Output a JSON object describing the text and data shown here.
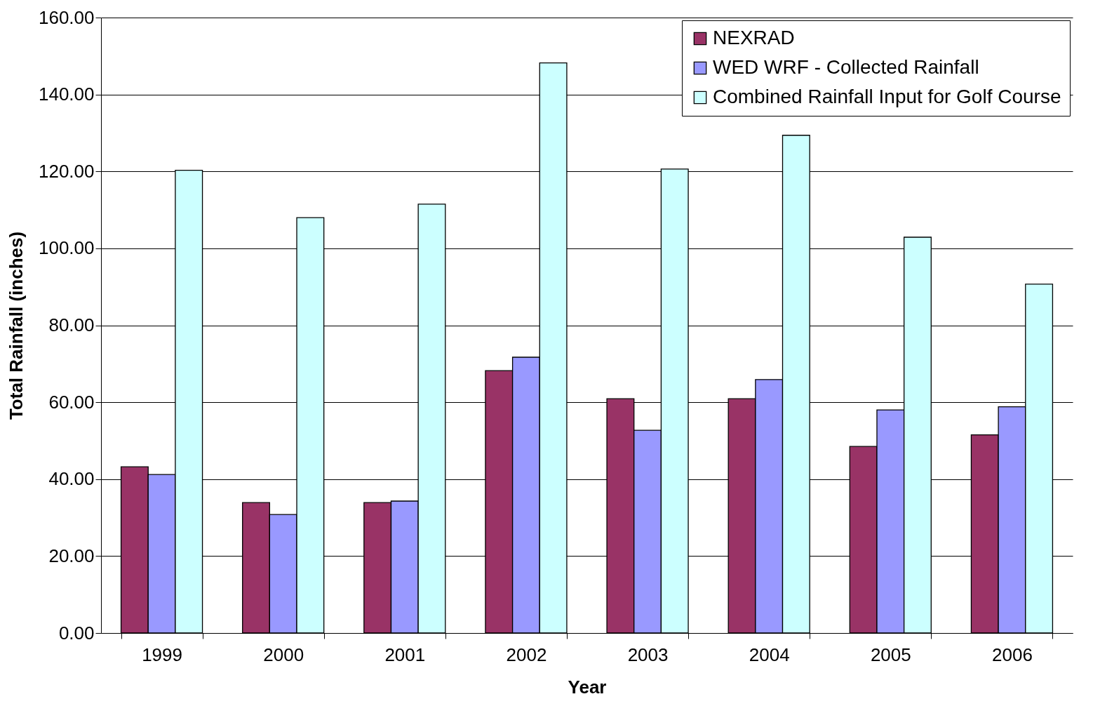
{
  "chart_data": {
    "type": "bar",
    "xlabel": "Year",
    "ylabel": "Total Rainfall (inches)",
    "categories": [
      "1999",
      "2000",
      "2001",
      "2002",
      "2003",
      "2004",
      "2005",
      "2006"
    ],
    "series": [
      {
        "name": "NEXRAD",
        "color": "#993366",
        "values": [
          43.2,
          33.9,
          33.9,
          68.2,
          60.9,
          60.9,
          48.5,
          51.5
        ]
      },
      {
        "name": "WED WRF - Collected Rainfall",
        "color": "#9999ff",
        "values": [
          41.2,
          30.8,
          34.3,
          71.7,
          52.7,
          65.9,
          58.0,
          58.8
        ]
      },
      {
        "name": "Combined Rainfall Input for Golf Course",
        "color": "#ccffff",
        "values": [
          120.3,
          108.0,
          111.5,
          148.2,
          120.6,
          129.4,
          102.9,
          90.7
        ]
      }
    ],
    "ylim": [
      0,
      160
    ],
    "yticks": [
      {
        "value": 0,
        "label": "0.00"
      },
      {
        "value": 20,
        "label": "20.00"
      },
      {
        "value": 40,
        "label": "40.00"
      },
      {
        "value": 60,
        "label": "60.00"
      },
      {
        "value": 80,
        "label": "80.00"
      },
      {
        "value": 100,
        "label": "100.00"
      },
      {
        "value": 120,
        "label": "120.00"
      },
      {
        "value": 140,
        "label": "140.00"
      },
      {
        "value": 160,
        "label": "160.00"
      }
    ],
    "grid": "y",
    "legend": "top right"
  }
}
